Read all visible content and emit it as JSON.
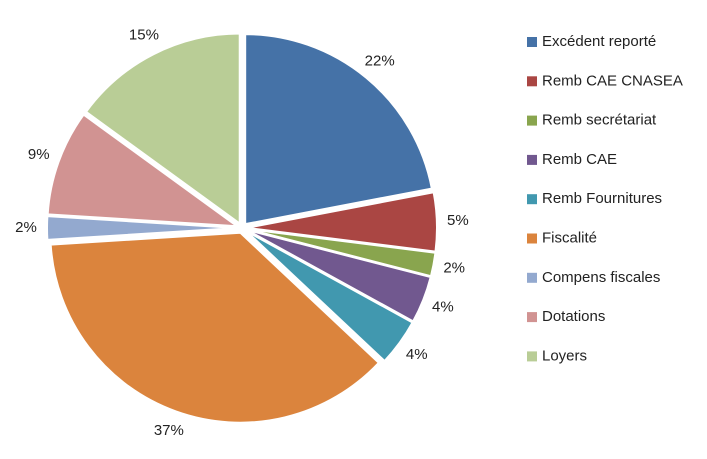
{
  "chart_data": {
    "type": "pie",
    "categories": [
      "Excédent reporté",
      "Remb CAE CNASEA",
      "Remb secrétariat",
      "Remb CAE",
      "Remb Fournitures",
      "Fiscalité",
      "Compens fiscales",
      "Dotations",
      "Loyers"
    ],
    "values": [
      22,
      5,
      2,
      4,
      4,
      37,
      2,
      9,
      15
    ],
    "value_labels": [
      "22%",
      "5%",
      "2%",
      "4%",
      "4%",
      "37%",
      "2%",
      "9%",
      "15%"
    ],
    "colors": [
      "#4572a7",
      "#aa4643",
      "#89a54e",
      "#71588f",
      "#4198af",
      "#db843d",
      "#93a9cf",
      "#d19392",
      "#b9cd96"
    ],
    "legend": "right"
  }
}
